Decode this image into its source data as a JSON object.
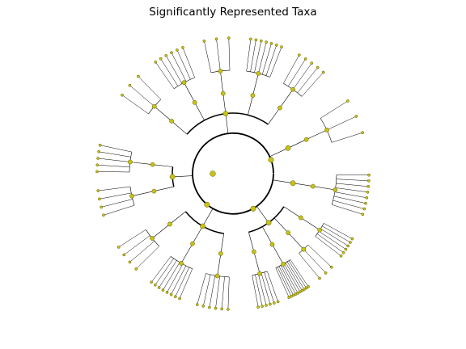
{
  "chart_data": {
    "type": "radial-tree",
    "title": "Significantly Represented Taxa",
    "grid": false,
    "node_color": "#c8c214",
    "node_edge_color": "#5f5c00",
    "line_color": "#000000",
    "levels": 5,
    "clades": [
      {
        "name": "",
        "start_deg": -150,
        "end_deg": -44
      },
      {
        "name": "",
        "start_deg": -40,
        "end_deg": -10
      },
      {
        "name": "",
        "start_deg": -4,
        "end_deg": 22
      },
      {
        "name": "",
        "start_deg": 26,
        "end_deg": 82
      },
      {
        "name": "",
        "start_deg": 88,
        "end_deg": 152
      },
      {
        "name": "",
        "start_deg": 158,
        "end_deg": 196
      }
    ]
  }
}
